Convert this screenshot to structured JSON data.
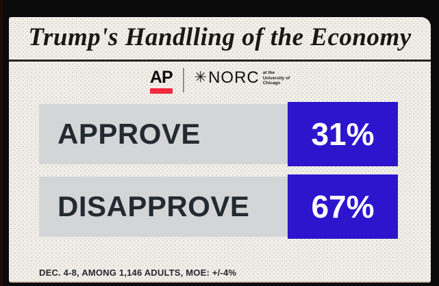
{
  "title": "Trump's Handlling of the Economy",
  "logo": {
    "ap_label": "AP",
    "norc_star": "✳",
    "norc_label": "NORC",
    "tagline_line1": "at the",
    "tagline_line2": "University of",
    "tagline_line3": "Chicago"
  },
  "rows": [
    {
      "label": "APPROVE",
      "value": "31%"
    },
    {
      "label": "DISAPPROVE",
      "value": "67%"
    }
  ],
  "footnote": "DEC. 4-8, AMONG 1,146 ADULTS, MOE: +/-4%",
  "chart_data": {
    "type": "bar",
    "orientation": "horizontal",
    "title": "Trump's Handlling of the Economy",
    "source": "AP | NORC at the University of Chicago",
    "categories": [
      "APPROVE",
      "DISAPPROVE"
    ],
    "values": [
      31,
      67
    ],
    "unit": "%",
    "value_labels": [
      "31%",
      "67%"
    ],
    "note": "DEC. 4-8, AMONG 1,146 ADULTS, MOE: +/-4%",
    "legend": "none",
    "grid": false
  },
  "colors": {
    "accent": "#2d15cd",
    "bar_gray": "#d3d5d6",
    "ap_red": "#f02a3c",
    "card_bg": "#f2f0ea",
    "frame": "#0c0b0b",
    "label_ink": "#242a31"
  }
}
